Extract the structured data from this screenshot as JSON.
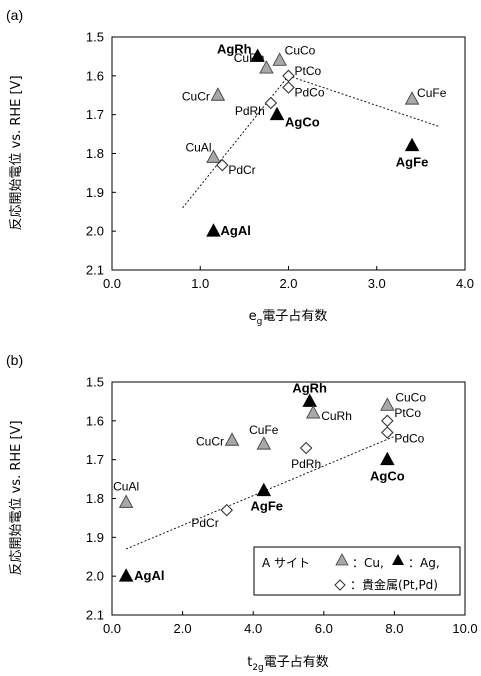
{
  "chart_data": [
    {
      "type": "scatter",
      "panel_label": "(a)",
      "xlabel_main": "e",
      "xlabel_sub": "g",
      "xlabel_rest": "電子占有数",
      "ylabel": "反応開始電位 vs. RHE [V]",
      "xlim": [
        0.0,
        4.0
      ],
      "ylim": [
        1.5,
        2.1
      ],
      "y_inverted": true,
      "xticks": [
        "0.0",
        "1.0",
        "2.0",
        "3.0",
        "4.0"
      ],
      "yticks": [
        "1.5",
        "1.6",
        "1.7",
        "1.8",
        "1.9",
        "2.0",
        "2.1"
      ],
      "grid": false,
      "points": [
        {
          "label": "AgRh",
          "x": 1.65,
          "y": 1.55,
          "marker": "filled-triangle",
          "bold": true
        },
        {
          "label": "CuCo",
          "x": 1.9,
          "y": 1.56,
          "marker": "gray-triangle",
          "bold": false
        },
        {
          "label": "CuRh",
          "x": 1.75,
          "y": 1.58,
          "marker": "gray-triangle",
          "bold": false
        },
        {
          "label": "PtCo",
          "x": 2.0,
          "y": 1.6,
          "marker": "open-diamond",
          "bold": false
        },
        {
          "label": "PdCo",
          "x": 2.0,
          "y": 1.63,
          "marker": "open-diamond",
          "bold": false
        },
        {
          "label": "CuCr",
          "x": 1.2,
          "y": 1.65,
          "marker": "gray-triangle",
          "bold": false
        },
        {
          "label": "PdRh",
          "x": 1.8,
          "y": 1.67,
          "marker": "open-diamond",
          "bold": false
        },
        {
          "label": "AgCo",
          "x": 1.87,
          "y": 1.7,
          "marker": "filled-triangle",
          "bold": true
        },
        {
          "label": "CuFe",
          "x": 3.4,
          "y": 1.66,
          "marker": "gray-triangle",
          "bold": false
        },
        {
          "label": "AgFe",
          "x": 3.4,
          "y": 1.78,
          "marker": "filled-triangle",
          "bold": true
        },
        {
          "label": "CuAl",
          "x": 1.15,
          "y": 1.81,
          "marker": "gray-triangle",
          "bold": false
        },
        {
          "label": "PdCr",
          "x": 1.25,
          "y": 1.83,
          "marker": "open-diamond",
          "bold": false
        },
        {
          "label": "AgAl",
          "x": 1.15,
          "y": 2.0,
          "marker": "filled-triangle",
          "bold": true
        }
      ],
      "trendlines": [
        {
          "x": [
            0.8,
            2.0
          ],
          "y": [
            1.94,
            1.6
          ]
        },
        {
          "x": [
            2.0,
            3.7
          ],
          "y": [
            1.6,
            1.73
          ]
        }
      ]
    },
    {
      "type": "scatter",
      "panel_label": "(b)",
      "xlabel_main": "t",
      "xlabel_sub": "2g",
      "xlabel_rest": "電子占有数",
      "ylabel": "反応開始電位 vs. RHE [V]",
      "xlim": [
        0.0,
        10.0
      ],
      "ylim": [
        1.5,
        2.1
      ],
      "y_inverted": true,
      "xticks": [
        "0.0",
        "2.0",
        "4.0",
        "6.0",
        "8.0",
        "10.0"
      ],
      "yticks": [
        "1.5",
        "1.6",
        "1.7",
        "1.8",
        "1.9",
        "2.0",
        "2.1"
      ],
      "grid": false,
      "points": [
        {
          "label": "AgRh",
          "x": 5.6,
          "y": 1.55,
          "marker": "filled-triangle",
          "bold": true
        },
        {
          "label": "CuRh",
          "x": 5.7,
          "y": 1.58,
          "marker": "gray-triangle",
          "bold": false
        },
        {
          "label": "CuCo",
          "x": 7.8,
          "y": 1.56,
          "marker": "gray-triangle",
          "bold": false
        },
        {
          "label": "PtCo",
          "x": 7.8,
          "y": 1.6,
          "marker": "open-diamond",
          "bold": false
        },
        {
          "label": "PdCo",
          "x": 7.8,
          "y": 1.63,
          "marker": "open-diamond",
          "bold": false
        },
        {
          "label": "CuCr",
          "x": 3.4,
          "y": 1.65,
          "marker": "gray-triangle",
          "bold": false
        },
        {
          "label": "CuFe",
          "x": 4.3,
          "y": 1.66,
          "marker": "gray-triangle",
          "bold": false
        },
        {
          "label": "PdRh",
          "x": 5.5,
          "y": 1.67,
          "marker": "open-diamond",
          "bold": false
        },
        {
          "label": "AgCo",
          "x": 7.8,
          "y": 1.7,
          "marker": "filled-triangle",
          "bold": true
        },
        {
          "label": "AgFe",
          "x": 4.3,
          "y": 1.78,
          "marker": "filled-triangle",
          "bold": true
        },
        {
          "label": "CuAl",
          "x": 0.4,
          "y": 1.81,
          "marker": "gray-triangle",
          "bold": false
        },
        {
          "label": "PdCr",
          "x": 3.25,
          "y": 1.83,
          "marker": "open-diamond",
          "bold": false
        },
        {
          "label": "AgAl",
          "x": 0.4,
          "y": 2.0,
          "marker": "filled-triangle",
          "bold": true
        }
      ],
      "trendlines": [
        {
          "x": [
            0.4,
            8.0
          ],
          "y": [
            1.93,
            1.64
          ]
        }
      ],
      "legend": {
        "position": "bottom-right",
        "prefix": "A サイト",
        "gray_label": "：Cu,",
        "black_label": "：Ag,",
        "diamond_label": "：貴金属(Pt,Pd)"
      }
    }
  ],
  "colors": {
    "gray_triangle": "#a8a8a8",
    "black_triangle": "#000000",
    "axis": "#000000"
  }
}
